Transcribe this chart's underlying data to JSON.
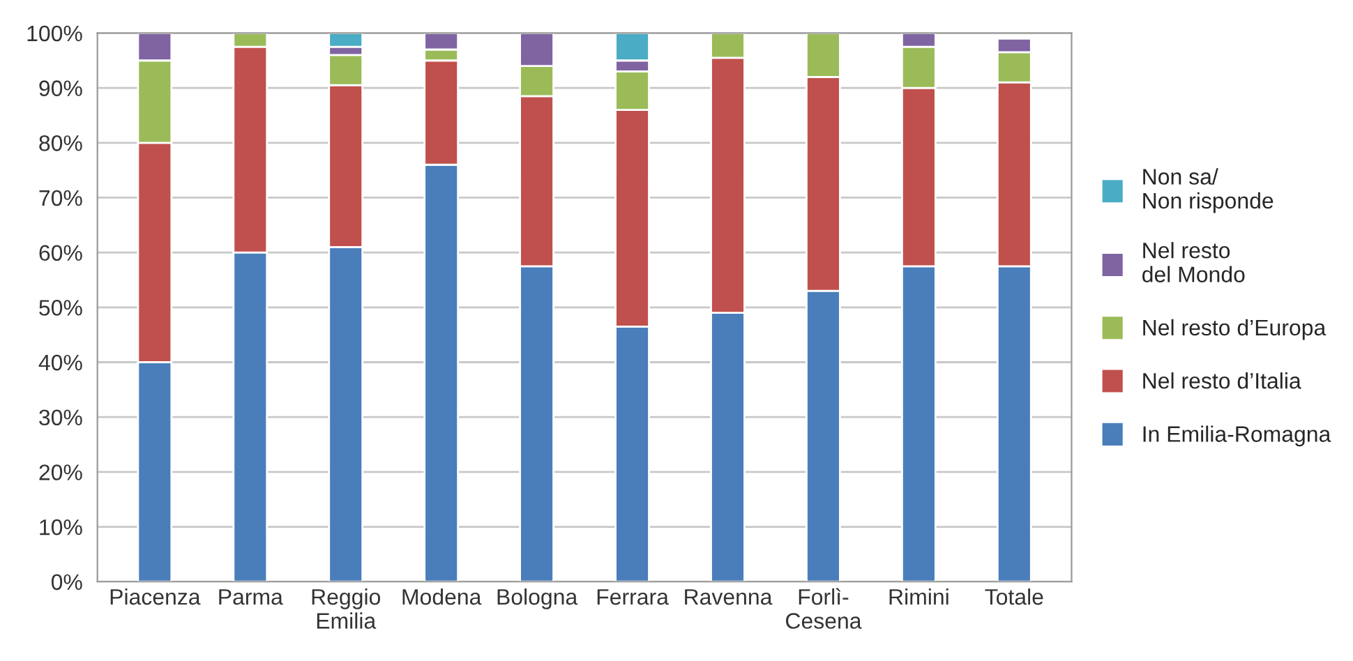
{
  "chart_data": {
    "type": "bar",
    "stacked": true,
    "categories": [
      "Piacenza",
      "Parma",
      "Reggio\nEmilia",
      "Modena",
      "Bologna",
      "Ferrara",
      "Ravenna",
      "Forlì-\nCesena",
      "Rimini",
      "Totale"
    ],
    "series": [
      {
        "name": "In Emilia-Romagna",
        "color": "#4a7ebb",
        "values": [
          40,
          60,
          61,
          76,
          57.5,
          46.5,
          49,
          53,
          57.5,
          57.5
        ]
      },
      {
        "name": "Nel resto d’Italia",
        "color": "#c0504d",
        "values": [
          40,
          37.5,
          29.5,
          19,
          31,
          39.5,
          46.5,
          39,
          32.5,
          33.5
        ]
      },
      {
        "name": "Nel resto d’Europa",
        "color": "#9bbb59",
        "values": [
          15,
          2.5,
          5.5,
          2,
          5.5,
          7,
          4.5,
          8,
          7.5,
          5.5
        ]
      },
      {
        "name": "Nel resto\ndel Mondo",
        "color": "#8064a2",
        "values": [
          5,
          null,
          1.5,
          3,
          6,
          2,
          null,
          null,
          2.5,
          2.5
        ]
      },
      {
        "name": "Non sa/\nNon risponde",
        "color": "#4bacc6",
        "values": [
          null,
          null,
          2.5,
          null,
          null,
          5,
          null,
          null,
          null,
          null
        ]
      }
    ],
    "ylim": [
      0,
      100
    ],
    "yticks": [
      {
        "value": 0,
        "label": "0%"
      },
      {
        "value": 10,
        "label": "10%"
      },
      {
        "value": 20,
        "label": "20%"
      },
      {
        "value": 30,
        "label": "30%"
      },
      {
        "value": 40,
        "label": "40%"
      },
      {
        "value": 50,
        "label": "50%"
      },
      {
        "value": 60,
        "label": "60%"
      },
      {
        "value": 70,
        "label": "70%"
      },
      {
        "value": 80,
        "label": "80%"
      },
      {
        "value": 90,
        "label": "90%"
      },
      {
        "value": 100,
        "label": "100%"
      }
    ],
    "grid": "y",
    "legend": "right"
  }
}
